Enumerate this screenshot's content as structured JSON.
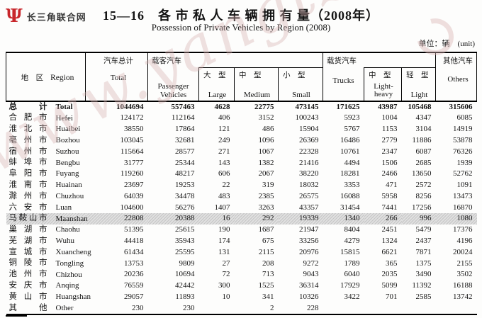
{
  "page": {
    "logo_icon": "Ψ",
    "logo_text": "长三角联合网",
    "title_cn": "15—16　各 市 私 人 车 辆 拥 有 量（2008年）",
    "title_en": "Possession of Private Vehicles by Region (2008)",
    "unit_note": "单位：辆　(unit)",
    "watermark": "www.yangtze.org.cn"
  },
  "table": {
    "header": {
      "region_cn": "地　区",
      "region_en": "Region",
      "total_cn": "汽车总计",
      "total_en": "Total",
      "passenger_group": "载客汽车",
      "passenger_en": "Passenger Vehicles",
      "large_cn": "大　型",
      "large_en": "Large",
      "medium_cn": "中　型",
      "medium_en": "Medium",
      "small_cn": "小　型",
      "small_en": "Small",
      "truck_group": "载货汽车",
      "trucks_en": "Trucks",
      "lightheavy_cn": "中　型",
      "lightheavy_en": "Light-heavy",
      "light_cn": "轻　型",
      "light_en": "Light",
      "others_cn": "其他汽车",
      "others_en": "Others"
    },
    "rows": [
      {
        "cn": "总计",
        "en": "Total",
        "bold": true,
        "highlight": false,
        "values": [
          "1044694",
          "557463",
          "4628",
          "22775",
          "473145",
          "171625",
          "43987",
          "105468",
          "315606"
        ]
      },
      {
        "cn": "合肥市",
        "en": "Hefei",
        "bold": false,
        "highlight": false,
        "values": [
          "124172",
          "112164",
          "406",
          "3152",
          "100243",
          "5923",
          "1004",
          "4347",
          "6085"
        ]
      },
      {
        "cn": "淮北市",
        "en": "Huaibei",
        "bold": false,
        "highlight": false,
        "values": [
          "38550",
          "17864",
          "121",
          "486",
          "15904",
          "5767",
          "1153",
          "3104",
          "14919"
        ]
      },
      {
        "cn": "亳州市",
        "en": "Bozhou",
        "bold": false,
        "highlight": false,
        "values": [
          "103045",
          "32681",
          "249",
          "1096",
          "26369",
          "16486",
          "2779",
          "11886",
          "53878"
        ]
      },
      {
        "cn": "宿州市",
        "en": "Suzhou",
        "bold": false,
        "highlight": false,
        "values": [
          "115664",
          "28577",
          "271",
          "1067",
          "22328",
          "10761",
          "2347",
          "6087",
          "76326"
        ]
      },
      {
        "cn": "蚌埠市",
        "en": "Bengbu",
        "bold": false,
        "highlight": false,
        "values": [
          "31777",
          "25344",
          "143",
          "1382",
          "21416",
          "4494",
          "1506",
          "2685",
          "1939"
        ]
      },
      {
        "cn": "阜阳市",
        "en": "Fuyang",
        "bold": false,
        "highlight": false,
        "values": [
          "119260",
          "48217",
          "606",
          "2067",
          "38220",
          "18281",
          "2466",
          "13650",
          "52762"
        ]
      },
      {
        "cn": "淮南市",
        "en": "Huainan",
        "bold": false,
        "highlight": false,
        "values": [
          "23697",
          "19253",
          "22",
          "319",
          "18032",
          "3353",
          "471",
          "2572",
          "1091"
        ]
      },
      {
        "cn": "滁州市",
        "en": "Chuzhou",
        "bold": false,
        "highlight": false,
        "values": [
          "64039",
          "34478",
          "483",
          "2385",
          "26575",
          "16088",
          "5958",
          "8256",
          "13473"
        ]
      },
      {
        "cn": "六安市",
        "en": "Luan",
        "bold": false,
        "highlight": false,
        "values": [
          "104600",
          "56276",
          "1407",
          "3263",
          "43357",
          "31454",
          "7441",
          "17256",
          "16870"
        ]
      },
      {
        "cn": "马鞍山市",
        "en": "Maanshan",
        "bold": false,
        "highlight": true,
        "values": [
          "22808",
          "20388",
          "16",
          "292",
          "19339",
          "1340",
          "266",
          "996",
          "1080"
        ]
      },
      {
        "cn": "巢湖市",
        "en": "Chaohu",
        "bold": false,
        "highlight": false,
        "values": [
          "51395",
          "25615",
          "190",
          "1687",
          "21947",
          "8404",
          "2451",
          "5479",
          "17376"
        ]
      },
      {
        "cn": "芜湖市",
        "en": "Wuhu",
        "bold": false,
        "highlight": false,
        "values": [
          "44418",
          "35943",
          "174",
          "675",
          "33256",
          "4279",
          "1324",
          "2437",
          "4196"
        ]
      },
      {
        "cn": "宣城市",
        "en": "Xuancheng",
        "bold": false,
        "highlight": false,
        "values": [
          "61434",
          "25595",
          "131",
          "2115",
          "20976",
          "15815",
          "6621",
          "7871",
          "20024"
        ]
      },
      {
        "cn": "铜陵市",
        "en": "Tongling",
        "bold": false,
        "highlight": false,
        "values": [
          "13753",
          "9809",
          "27",
          "208",
          "9272",
          "1789",
          "365",
          "1375",
          "2155"
        ]
      },
      {
        "cn": "池州市",
        "en": "Chizhou",
        "bold": false,
        "highlight": false,
        "values": [
          "20236",
          "10694",
          "72",
          "713",
          "9043",
          "6040",
          "2035",
          "3490",
          "3502"
        ]
      },
      {
        "cn": "安庆市",
        "en": "Anqing",
        "bold": false,
        "highlight": false,
        "values": [
          "76559",
          "42442",
          "300",
          "1525",
          "36314",
          "17929",
          "5099",
          "11392",
          "16188"
        ]
      },
      {
        "cn": "黄山市",
        "en": "Huangshan",
        "bold": false,
        "highlight": false,
        "values": [
          "29057",
          "11893",
          "10",
          "341",
          "10326",
          "3422",
          "701",
          "2585",
          "13742"
        ]
      },
      {
        "cn": "其他",
        "en": "Other",
        "bold": false,
        "highlight": false,
        "values": [
          "230",
          "230",
          "",
          "2",
          "228",
          "",
          "",
          "",
          ""
        ]
      }
    ]
  }
}
